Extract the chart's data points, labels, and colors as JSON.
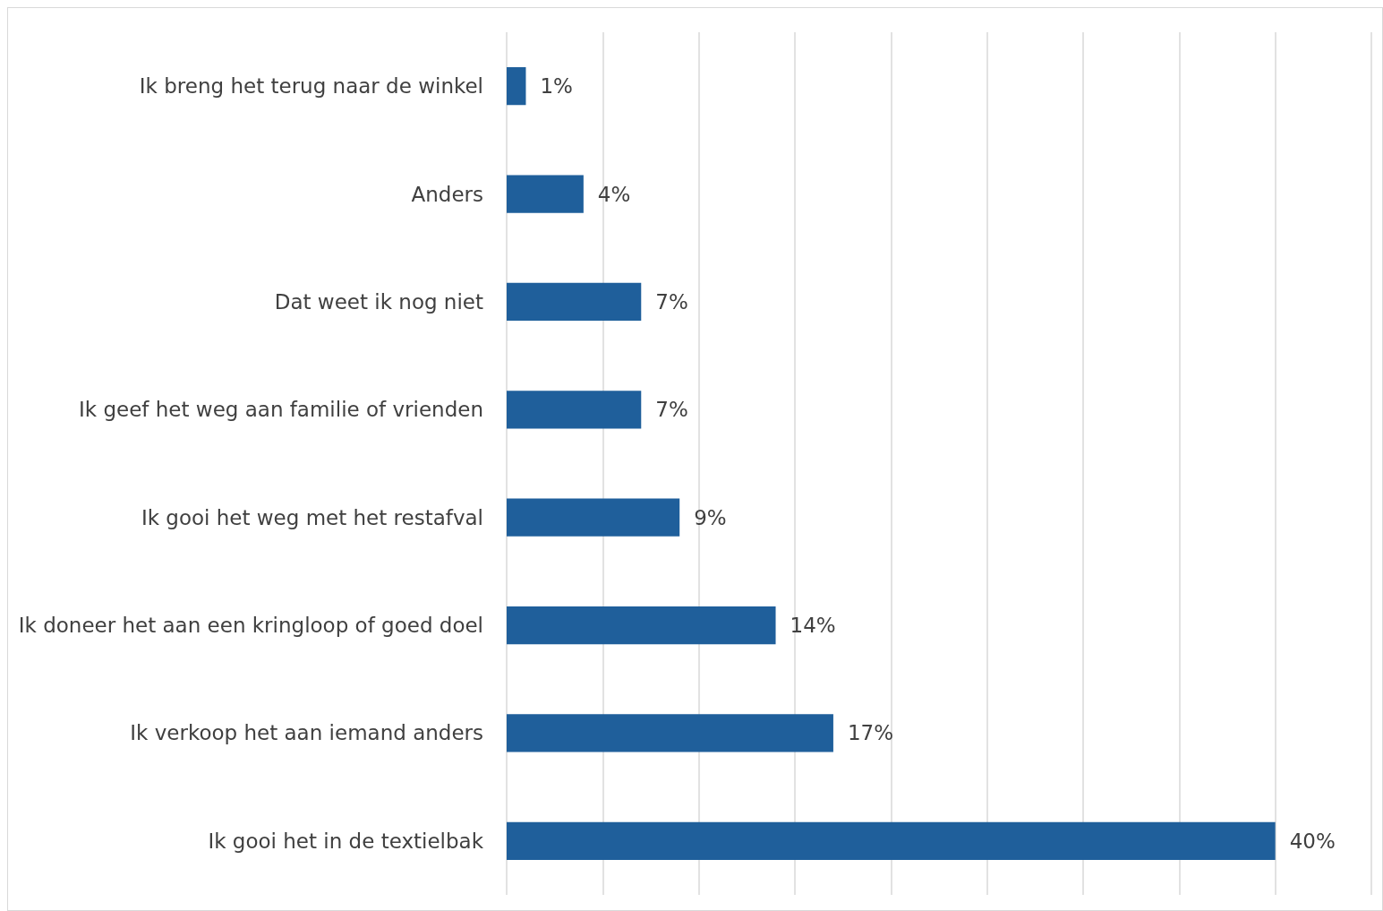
{
  "chart_data": {
    "type": "bar",
    "orientation": "horizontal",
    "categories": [
      "Ik breng het terug naar de winkel",
      "Anders",
      "Dat weet ik nog niet",
      "Ik geef het weg aan familie of vrienden",
      "Ik gooi het weg met het restafval",
      "Ik doneer het aan een kringloop of goed doel",
      "Ik verkoop het aan iemand anders",
      "Ik gooi het in de textielbak"
    ],
    "values": [
      1,
      4,
      7,
      7,
      9,
      14,
      17,
      40
    ],
    "value_labels": [
      "1%",
      "4%",
      "7%",
      "7%",
      "9%",
      "14%",
      "17%",
      "40%"
    ],
    "color": "#1f5f9b",
    "xlim": [
      0,
      45
    ],
    "xticks": [
      {
        "value": 0,
        "label": null
      },
      {
        "value": 5,
        "label": null
      },
      {
        "value": 10,
        "label": null
      },
      {
        "value": 15,
        "label": null
      },
      {
        "value": 20,
        "label": null
      },
      {
        "value": 25,
        "label": null
      },
      {
        "value": 30,
        "label": null
      },
      {
        "value": 35,
        "label": null
      },
      {
        "value": 40,
        "label": null
      },
      {
        "value": 45,
        "label": null
      }
    ],
    "grid": "x",
    "tick_labels": "y"
  }
}
